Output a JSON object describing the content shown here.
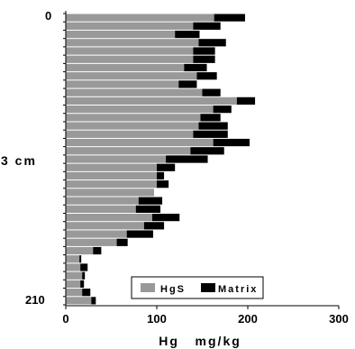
{
  "chart_data": {
    "type": "bar",
    "orientation": "horizontal",
    "stacked": true,
    "title": "",
    "xlabel": "Hg   mg/kg",
    "ylabel": "3 cm",
    "xlim": [
      0,
      300
    ],
    "x_ticks": [
      "0",
      "100",
      "200",
      "300"
    ],
    "y_tick_labels": {
      "top": "0",
      "bottom": "210"
    },
    "legend": {
      "position": "bottom-right",
      "entries": [
        "HgS",
        "Matrix"
      ]
    },
    "colors": {
      "HgS": "#999999",
      "Matrix": "#000000"
    },
    "series": [
      {
        "name": "HgS",
        "values": [
          163,
          140,
          120,
          146,
          140,
          140,
          130,
          144,
          124,
          150,
          188,
          162,
          148,
          146,
          140,
          162,
          137,
          110,
          100,
          100,
          100,
          97,
          80,
          77,
          95,
          86,
          67,
          56,
          30,
          15,
          16,
          18,
          16,
          18,
          28
        ]
      },
      {
        "name": "Matrix",
        "values": [
          34,
          30,
          27,
          30,
          24,
          24,
          25,
          22,
          20,
          20,
          20,
          20,
          22,
          32,
          38,
          40,
          37,
          46,
          20,
          8,
          13,
          0,
          26,
          27,
          30,
          22,
          29,
          12,
          9,
          2,
          8,
          3,
          4,
          9,
          5
        ]
      }
    ]
  }
}
